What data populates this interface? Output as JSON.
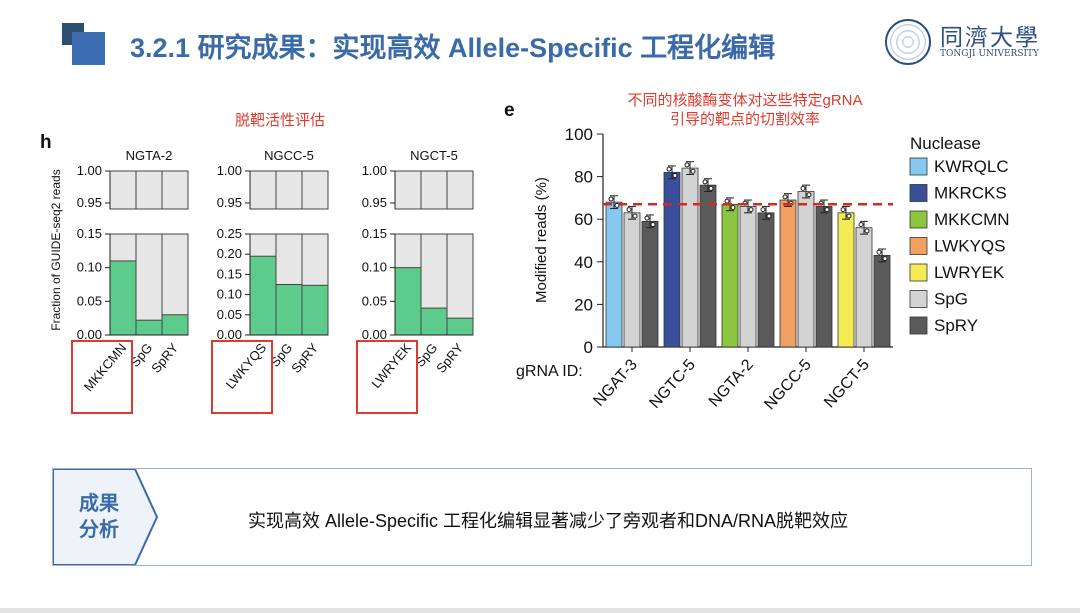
{
  "header": {
    "title": "3.2.1 研究成果：实现高效 Allele-Specific 工程化编辑"
  },
  "logo": {
    "cn": "同濟大學",
    "en": "TONGJI UNIVERSITY"
  },
  "annotations": {
    "left_caption": "脱靶活性评估",
    "right_caption_line1": "不同的核酸酶变体对这些特定gRNA",
    "right_caption_line2": "引导的靶点的切割效率",
    "panel_h": "h",
    "panel_e": "e"
  },
  "summary": {
    "tag_line1": "成果",
    "tag_line2": "分析",
    "text": "实现高效 Allele-Specific 工程化编辑显著减少了旁观者和DNA/RNA脱靶效应"
  },
  "colors": {
    "accent_red": "#e03a2e",
    "title_blue": "#3a6aa8",
    "bar_green": "#5dcb8c",
    "bar_gray": "#e6e6e6"
  },
  "chart_data": [
    {
      "type": "bar",
      "panel": "h",
      "ylabel": "Fraction of GUIDE-seq2 reads",
      "subplots": [
        {
          "title": "NGTA-2",
          "categories": [
            "MKKCMN",
            "SpG",
            "SpRY"
          ],
          "values": [
            0.11,
            0.022,
            0.03
          ],
          "highlighted": "MKKCMN",
          "y_ticks_bottom": [
            "0.15",
            "0.10",
            "0.05",
            "0.00"
          ],
          "y_ticks_top": [
            "1.00",
            "0.95"
          ],
          "ylim_bottom": [
            0,
            0.15
          ]
        },
        {
          "title": "NGCC-5",
          "categories": [
            "LWKYQS",
            "SpG",
            "SpRY"
          ],
          "values": [
            0.195,
            0.125,
            0.123
          ],
          "highlighted": "LWKYQS",
          "y_ticks_bottom": [
            "0.25",
            "0.20",
            "0.15",
            "0.10",
            "0.05",
            "0.00"
          ],
          "y_ticks_top": [
            "1.00",
            "0.95"
          ],
          "ylim_bottom": [
            0,
            0.25
          ]
        },
        {
          "title": "NGCT-5",
          "categories": [
            "LWRYEK",
            "SpG",
            "SpRY"
          ],
          "values": [
            0.1,
            0.04,
            0.025
          ],
          "highlighted": "LWRYEK",
          "y_ticks_bottom": [
            "0.15",
            "0.10",
            "0.05",
            "0.00"
          ],
          "y_ticks_top": [
            "1.00",
            "0.95"
          ],
          "ylim_bottom": [
            0,
            0.15
          ]
        }
      ]
    },
    {
      "type": "bar",
      "panel": "e",
      "ylabel": "Modified reads (%)",
      "xlabel": "gRNA ID:",
      "ylim": [
        0,
        100
      ],
      "y_ticks": [
        "100",
        "80",
        "60",
        "40",
        "20",
        "0"
      ],
      "categories": [
        "NGAT-3",
        "NGTC-5",
        "NGTA-2",
        "NGCC-5",
        "NGCT-5"
      ],
      "reference_line": 67,
      "legend_title": "Nuclease",
      "legend": [
        {
          "name": "KWRQLC",
          "color": "#86c9ef"
        },
        {
          "name": "MKRCKS",
          "color": "#3a4f9a"
        },
        {
          "name": "MKKCMN",
          "color": "#8cc63f"
        },
        {
          "name": "LWKYQS",
          "color": "#f0a061"
        },
        {
          "name": "LWRYEK",
          "color": "#f5ec53"
        },
        {
          "name": "SpG",
          "color": "#d3d3d3"
        },
        {
          "name": "SpRY",
          "color": "#5a5a5a"
        }
      ],
      "groups": [
        {
          "category": "NGAT-3",
          "bars": [
            {
              "series": "KWRQLC",
              "value": 68
            },
            {
              "series": "SpG",
              "value": 63
            },
            {
              "series": "SpRY",
              "value": 59
            }
          ]
        },
        {
          "category": "NGTC-5",
          "bars": [
            {
              "series": "MKRCKS",
              "value": 82
            },
            {
              "series": "SpG",
              "value": 84
            },
            {
              "series": "SpRY",
              "value": 76
            }
          ]
        },
        {
          "category": "NGTA-2",
          "bars": [
            {
              "series": "MKKCMN",
              "value": 67
            },
            {
              "series": "SpG",
              "value": 66
            },
            {
              "series": "SpRY",
              "value": 63
            }
          ]
        },
        {
          "category": "NGCC-5",
          "bars": [
            {
              "series": "LWKYQS",
              "value": 69
            },
            {
              "series": "SpG",
              "value": 73
            },
            {
              "series": "SpRY",
              "value": 66
            }
          ]
        },
        {
          "category": "NGCT-5",
          "bars": [
            {
              "series": "LWRYEK",
              "value": 63
            },
            {
              "series": "SpG",
              "value": 56
            },
            {
              "series": "SpRY",
              "value": 43
            }
          ]
        }
      ]
    }
  ]
}
